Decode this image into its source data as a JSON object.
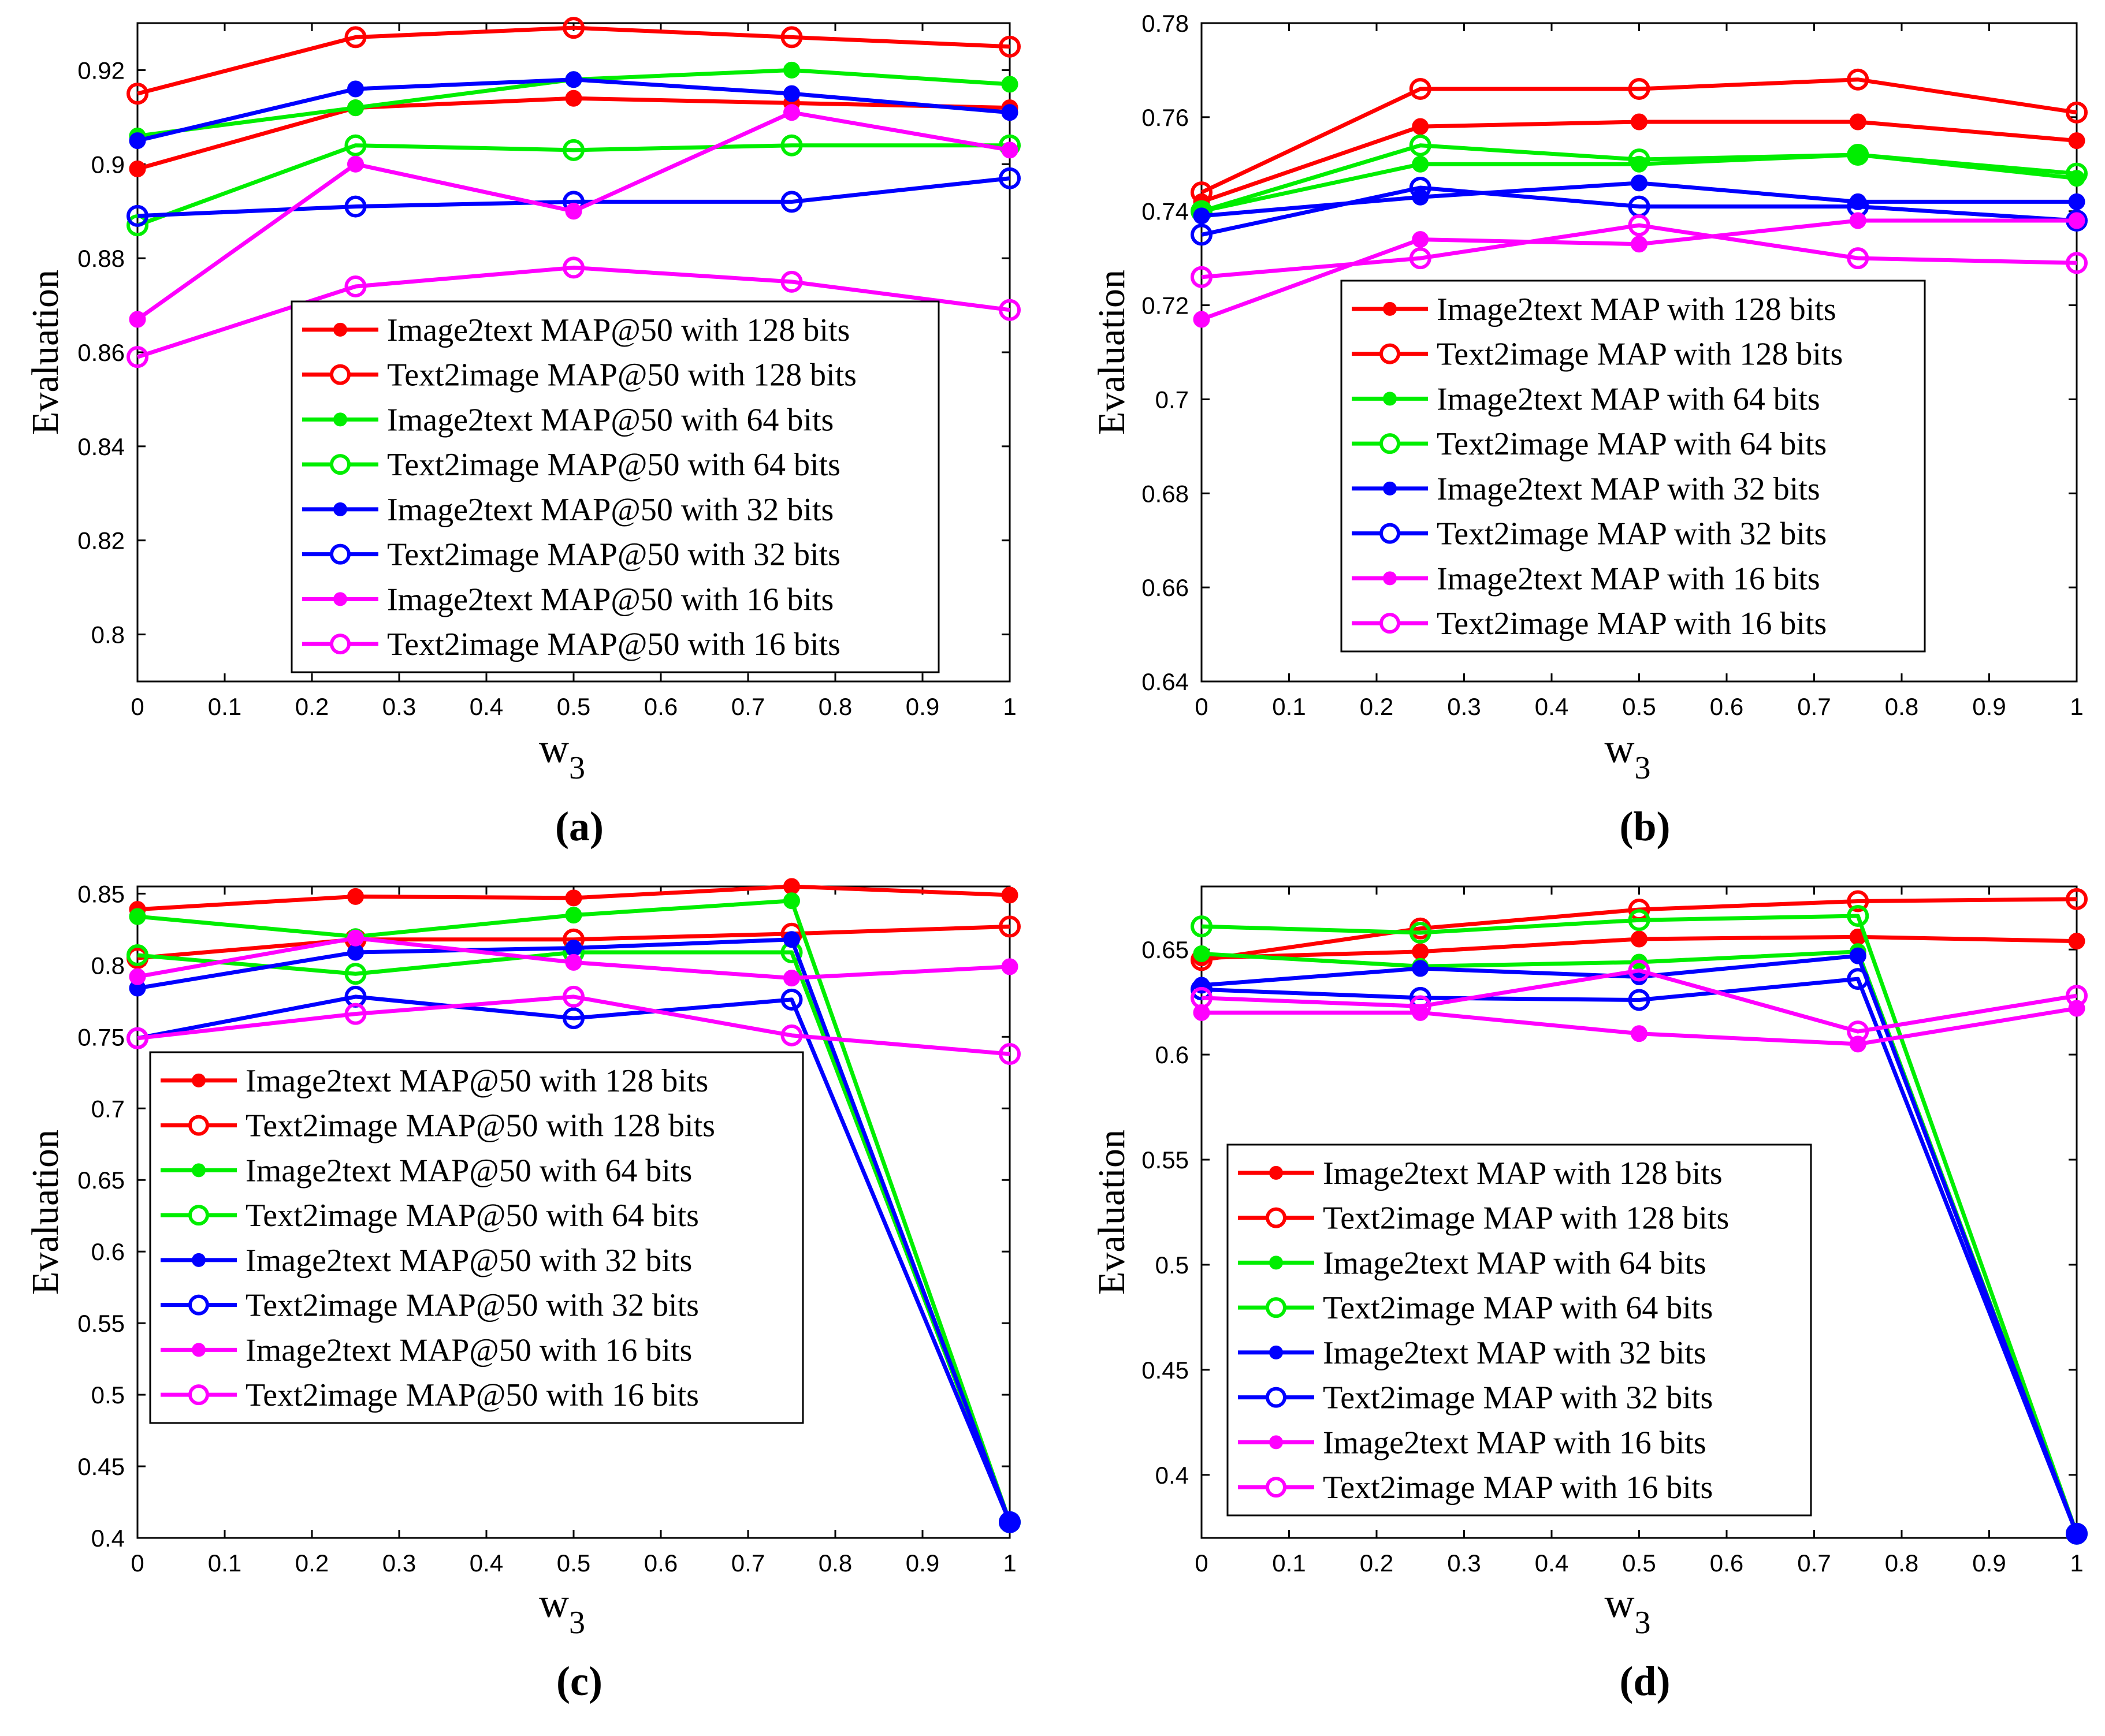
{
  "chart_data": [
    {
      "type": "line",
      "panel_label": "(a)",
      "xlabel": "w",
      "xlabel_sub": "3",
      "ylabel": "Evaluation",
      "xlim": [
        0,
        1
      ],
      "ylim": [
        0.79,
        0.93
      ],
      "x": [
        0,
        0.25,
        0.5,
        0.75,
        1
      ],
      "xticks": [
        "0",
        "0.1",
        "0.2",
        "0.3",
        "0.4",
        "0.5",
        "0.6",
        "0.7",
        "0.8",
        "0.9",
        "1"
      ],
      "yticks": [
        0.8,
        0.82,
        0.84,
        0.86,
        0.88,
        0.9,
        0.92
      ],
      "ytick_labels": [
        "0.8",
        "0.82",
        "0.84",
        "0.86",
        "0.88",
        "0.9",
        "0.92"
      ],
      "legend_position": "bottom-right",
      "series": [
        {
          "name": "Image2text MAP@50 with 128 bits",
          "color": "#ff0000",
          "marker": "filled",
          "values": [
            0.899,
            0.912,
            0.914,
            0.913,
            0.912
          ]
        },
        {
          "name": "Text2image MAP@50 with 128 bits",
          "color": "#ff0000",
          "marker": "open",
          "values": [
            0.915,
            0.927,
            0.929,
            0.927,
            0.925
          ]
        },
        {
          "name": "Image2text MAP@50 with 64 bits",
          "color": "#00ee00",
          "marker": "filled",
          "values": [
            0.906,
            0.912,
            0.918,
            0.92,
            0.917
          ]
        },
        {
          "name": "Text2image MAP@50 with 64 bits",
          "color": "#00ee00",
          "marker": "open",
          "values": [
            0.887,
            0.904,
            0.903,
            0.904,
            0.904
          ]
        },
        {
          "name": "Image2text MAP@50 with 32 bits",
          "color": "#0000ff",
          "marker": "filled",
          "values": [
            0.905,
            0.916,
            0.918,
            0.915,
            0.911
          ]
        },
        {
          "name": "Text2image MAP@50 with 32 bits",
          "color": "#0000ff",
          "marker": "open",
          "values": [
            0.889,
            0.891,
            0.892,
            0.892,
            0.897
          ]
        },
        {
          "name": "Image2text MAP@50 with 16 bits",
          "color": "#ff00ff",
          "marker": "filled",
          "values": [
            0.867,
            0.9,
            0.89,
            0.911,
            0.903
          ]
        },
        {
          "name": "Text2image MAP@50 with 16 bits",
          "color": "#ff00ff",
          "marker": "open",
          "values": [
            0.859,
            0.874,
            0.878,
            0.875,
            0.869
          ]
        }
      ]
    },
    {
      "type": "line",
      "panel_label": "(b)",
      "xlabel": "w",
      "xlabel_sub": "3",
      "ylabel": "Evaluation",
      "xlim": [
        0,
        1
      ],
      "ylim": [
        0.64,
        0.78
      ],
      "x": [
        0,
        0.25,
        0.5,
        0.75,
        1
      ],
      "xticks": [
        "0",
        "0.1",
        "0.2",
        "0.3",
        "0.4",
        "0.5",
        "0.6",
        "0.7",
        "0.8",
        "0.9",
        "1"
      ],
      "yticks": [
        0.64,
        0.66,
        0.68,
        0.7,
        0.72,
        0.74,
        0.76,
        0.78
      ],
      "ytick_labels": [
        "0.64",
        "0.66",
        "0.68",
        "0.7",
        "0.72",
        "0.74",
        "0.76",
        "0.78"
      ],
      "legend_position": "bottom-right",
      "series": [
        {
          "name": "Image2text MAP with 128 bits",
          "color": "#ff0000",
          "marker": "filled",
          "values": [
            0.742,
            0.758,
            0.759,
            0.759,
            0.755
          ]
        },
        {
          "name": "Text2image MAP with 128 bits",
          "color": "#ff0000",
          "marker": "open",
          "values": [
            0.744,
            0.766,
            0.766,
            0.768,
            0.761
          ]
        },
        {
          "name": "Image2text MAP with 64 bits",
          "color": "#00ee00",
          "marker": "filled",
          "values": [
            0.74,
            0.75,
            0.75,
            0.752,
            0.747
          ]
        },
        {
          "name": "Text2image MAP with 64 bits",
          "color": "#00ee00",
          "marker": "open",
          "values": [
            0.74,
            0.754,
            0.751,
            0.752,
            0.748
          ]
        },
        {
          "name": "Image2text MAP with 32 bits",
          "color": "#0000ff",
          "marker": "filled",
          "values": [
            0.739,
            0.743,
            0.746,
            0.742,
            0.742
          ]
        },
        {
          "name": "Text2image MAP with 32 bits",
          "color": "#0000ff",
          "marker": "open",
          "values": [
            0.735,
            0.745,
            0.741,
            0.741,
            0.738
          ]
        },
        {
          "name": "Image2text MAP with 16 bits",
          "color": "#ff00ff",
          "marker": "filled",
          "values": [
            0.717,
            0.734,
            0.733,
            0.738,
            0.738
          ]
        },
        {
          "name": "Text2image MAP with 16 bits",
          "color": "#ff00ff",
          "marker": "open",
          "values": [
            0.726,
            0.73,
            0.737,
            0.73,
            0.729
          ]
        }
      ]
    },
    {
      "type": "line",
      "panel_label": "(c)",
      "xlabel": "w",
      "xlabel_sub": "3",
      "ylabel": "Evaluation",
      "xlim": [
        0,
        1
      ],
      "ylim": [
        0.4,
        0.855
      ],
      "x": [
        0,
        0.25,
        0.5,
        0.75,
        1
      ],
      "xticks": [
        "0",
        "0.1",
        "0.2",
        "0.3",
        "0.4",
        "0.5",
        "0.6",
        "0.7",
        "0.8",
        "0.9",
        "1"
      ],
      "yticks": [
        0.4,
        0.45,
        0.5,
        0.55,
        0.6,
        0.65,
        0.7,
        0.75,
        0.8,
        0.85
      ],
      "ytick_labels": [
        "0.4",
        "0.45",
        "0.5",
        "0.55",
        "0.6",
        "0.65",
        "0.7",
        "0.75",
        "0.8",
        "0.85"
      ],
      "legend_position": "center-left",
      "series": [
        {
          "name": "Image2text MAP@50 with 128 bits",
          "color": "#ff0000",
          "marker": "filled",
          "values": [
            0.839,
            0.848,
            0.847,
            0.855,
            0.849
          ]
        },
        {
          "name": "Text2image MAP@50 with 128 bits",
          "color": "#ff0000",
          "marker": "open",
          "values": [
            0.805,
            0.818,
            0.818,
            0.822,
            0.827
          ]
        },
        {
          "name": "Image2text MAP@50 with 64 bits",
          "color": "#00ee00",
          "marker": "filled",
          "values": [
            0.834,
            0.82,
            0.835,
            0.845,
            0.411
          ]
        },
        {
          "name": "Text2image MAP@50 with 64 bits",
          "color": "#00ee00",
          "marker": "open",
          "values": [
            0.807,
            0.794,
            0.809,
            0.809,
            0.411
          ]
        },
        {
          "name": "Image2text MAP@50 with 32 bits",
          "color": "#0000ff",
          "marker": "filled",
          "values": [
            0.784,
            0.809,
            0.812,
            0.818,
            0.411
          ]
        },
        {
          "name": "Text2image MAP@50 with 32 bits",
          "color": "#0000ff",
          "marker": "open",
          "values": [
            0.749,
            0.778,
            0.763,
            0.776,
            0.411
          ]
        },
        {
          "name": "Image2text MAP@50 with 16 bits",
          "color": "#ff00ff",
          "marker": "filled",
          "values": [
            0.792,
            0.819,
            0.802,
            0.791,
            0.799
          ]
        },
        {
          "name": "Text2image MAP@50 with 16 bits",
          "color": "#ff00ff",
          "marker": "open",
          "values": [
            0.749,
            0.766,
            0.778,
            0.751,
            0.738
          ]
        }
      ]
    },
    {
      "type": "line",
      "panel_label": "(d)",
      "xlabel": "w",
      "xlabel_sub": "3",
      "ylabel": "Evaluation",
      "xlim": [
        0,
        1
      ],
      "ylim": [
        0.37,
        0.68
      ],
      "x": [
        0,
        0.25,
        0.5,
        0.75,
        1
      ],
      "xticks": [
        "0",
        "0.1",
        "0.2",
        "0.3",
        "0.4",
        "0.5",
        "0.6",
        "0.7",
        "0.8",
        "0.9",
        "1"
      ],
      "yticks": [
        0.4,
        0.45,
        0.5,
        0.55,
        0.6,
        0.65
      ],
      "ytick_labels": [
        "0.4",
        "0.45",
        "0.5",
        "0.55",
        "0.6",
        "0.65"
      ],
      "legend_position": "center",
      "series": [
        {
          "name": "Image2text MAP with 128 bits",
          "color": "#ff0000",
          "marker": "filled",
          "values": [
            0.646,
            0.649,
            0.655,
            0.656,
            0.654
          ]
        },
        {
          "name": "Text2image MAP with 128 bits",
          "color": "#ff0000",
          "marker": "open",
          "values": [
            0.645,
            0.66,
            0.669,
            0.673,
            0.674
          ]
        },
        {
          "name": "Image2text MAP with 64 bits",
          "color": "#00ee00",
          "marker": "filled",
          "values": [
            0.648,
            0.642,
            0.644,
            0.649,
            0.372
          ]
        },
        {
          "name": "Text2image MAP with 64 bits",
          "color": "#00ee00",
          "marker": "open",
          "values": [
            0.661,
            0.658,
            0.664,
            0.666,
            0.372
          ]
        },
        {
          "name": "Image2text MAP with 32 bits",
          "color": "#0000ff",
          "marker": "filled",
          "values": [
            0.633,
            0.641,
            0.637,
            0.647,
            0.372
          ]
        },
        {
          "name": "Text2image MAP with 32 bits",
          "color": "#0000ff",
          "marker": "open",
          "values": [
            0.631,
            0.627,
            0.626,
            0.636,
            0.372
          ]
        },
        {
          "name": "Image2text MAP with 16 bits",
          "color": "#ff00ff",
          "marker": "filled",
          "values": [
            0.62,
            0.62,
            0.61,
            0.605,
            0.622
          ]
        },
        {
          "name": "Text2image MAP with 16 bits",
          "color": "#ff00ff",
          "marker": "open",
          "values": [
            0.627,
            0.623,
            0.64,
            0.611,
            0.628
          ]
        }
      ]
    }
  ]
}
